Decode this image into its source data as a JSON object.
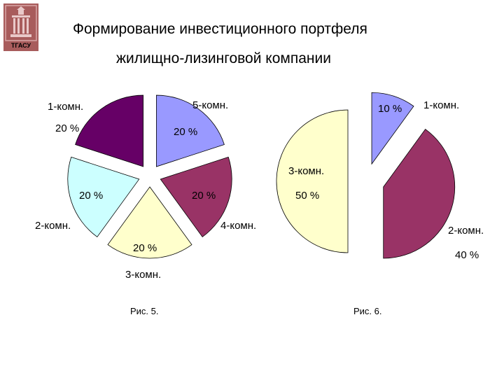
{
  "title": {
    "line1": "Формирование инвестиционного портфеля",
    "line2": "жилищно-лизинговой компании"
  },
  "logo": {
    "icon": "building-emblem-icon",
    "text": "ТГАСУ",
    "colors": [
      "#9c5454",
      "#c69090"
    ]
  },
  "chart_data": [
    {
      "type": "pie",
      "caption": "Рис. 5.",
      "exploded": true,
      "slices": [
        {
          "category": "5-комн.",
          "value": 20,
          "label": "20 %",
          "color": "#9999ff"
        },
        {
          "category": "4-комн.",
          "value": 20,
          "label": "20 %",
          "color": "#993366"
        },
        {
          "category": "3-комн.",
          "value": 20,
          "label": "20 %",
          "color": "#ffffcc"
        },
        {
          "category": "2-комн.",
          "value": 20,
          "label": "20 %",
          "color": "#ccffff"
        },
        {
          "category": "1-комн.",
          "value": 20,
          "label": "20 %",
          "color": "#660066"
        }
      ]
    },
    {
      "type": "pie",
      "caption": "Рис. 6.",
      "exploded": true,
      "slices": [
        {
          "category": "1-комн.",
          "value": 10,
          "label": "10 %",
          "color": "#9999ff"
        },
        {
          "category": "2-комн.",
          "value": 40,
          "label": "40 %",
          "color": "#993366"
        },
        {
          "category": "3-комн.",
          "value": 50,
          "label": "50 %",
          "color": "#ffffcc"
        }
      ]
    }
  ]
}
